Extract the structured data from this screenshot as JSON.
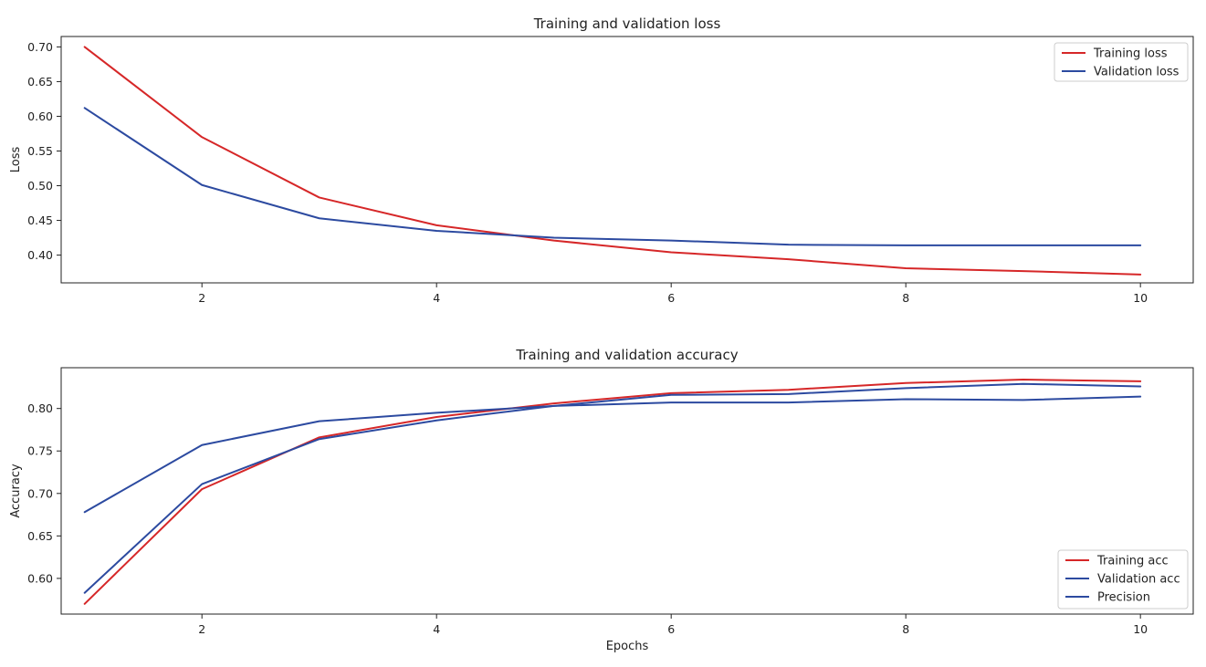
{
  "colors": {
    "red": "#d62728",
    "blue": "#2c4aa0"
  },
  "chart_data": [
    {
      "type": "line",
      "title": "Training and validation loss",
      "xlabel": "",
      "ylabel": "Loss",
      "xlim": [
        0.8,
        10.45
      ],
      "ylim": [
        0.36,
        0.715
      ],
      "xticks": [
        2,
        4,
        6,
        8,
        10
      ],
      "yticks": [
        0.4,
        0.45,
        0.5,
        0.55,
        0.6,
        0.65,
        0.7
      ],
      "tick_decimals": 2,
      "grid": false,
      "legend_position": "top-right",
      "x": [
        1,
        2,
        3,
        4,
        5,
        6,
        7,
        8,
        9,
        10
      ],
      "series": [
        {
          "name": "Training loss",
          "color": "red",
          "values": [
            0.7,
            0.57,
            0.483,
            0.443,
            0.421,
            0.404,
            0.394,
            0.381,
            0.377,
            0.372
          ]
        },
        {
          "name": "Validation loss",
          "color": "blue",
          "values": [
            0.612,
            0.501,
            0.453,
            0.435,
            0.425,
            0.421,
            0.415,
            0.414,
            0.414,
            0.414
          ]
        }
      ]
    },
    {
      "type": "line",
      "title": "Training and validation accuracy",
      "xlabel": "Epochs",
      "ylabel": "Accuracy",
      "xlim": [
        0.8,
        10.45
      ],
      "ylim": [
        0.558,
        0.848
      ],
      "xticks": [
        2,
        4,
        6,
        8,
        10
      ],
      "yticks": [
        0.6,
        0.65,
        0.7,
        0.75,
        0.8
      ],
      "tick_decimals": 2,
      "grid": false,
      "legend_position": "bottom-right",
      "x": [
        1,
        2,
        3,
        4,
        5,
        6,
        7,
        8,
        9,
        10
      ],
      "series": [
        {
          "name": "Training acc",
          "color": "red",
          "values": [
            0.57,
            0.705,
            0.766,
            0.79,
            0.806,
            0.818,
            0.822,
            0.83,
            0.834,
            0.832
          ]
        },
        {
          "name": "Validation acc",
          "color": "blue",
          "values": [
            0.583,
            0.711,
            0.764,
            0.786,
            0.803,
            0.816,
            0.817,
            0.824,
            0.829,
            0.826
          ]
        },
        {
          "name": "Precision",
          "color": "blue",
          "values": [
            0.678,
            0.757,
            0.785,
            0.795,
            0.803,
            0.807,
            0.807,
            0.811,
            0.81,
            0.814
          ]
        }
      ]
    }
  ]
}
